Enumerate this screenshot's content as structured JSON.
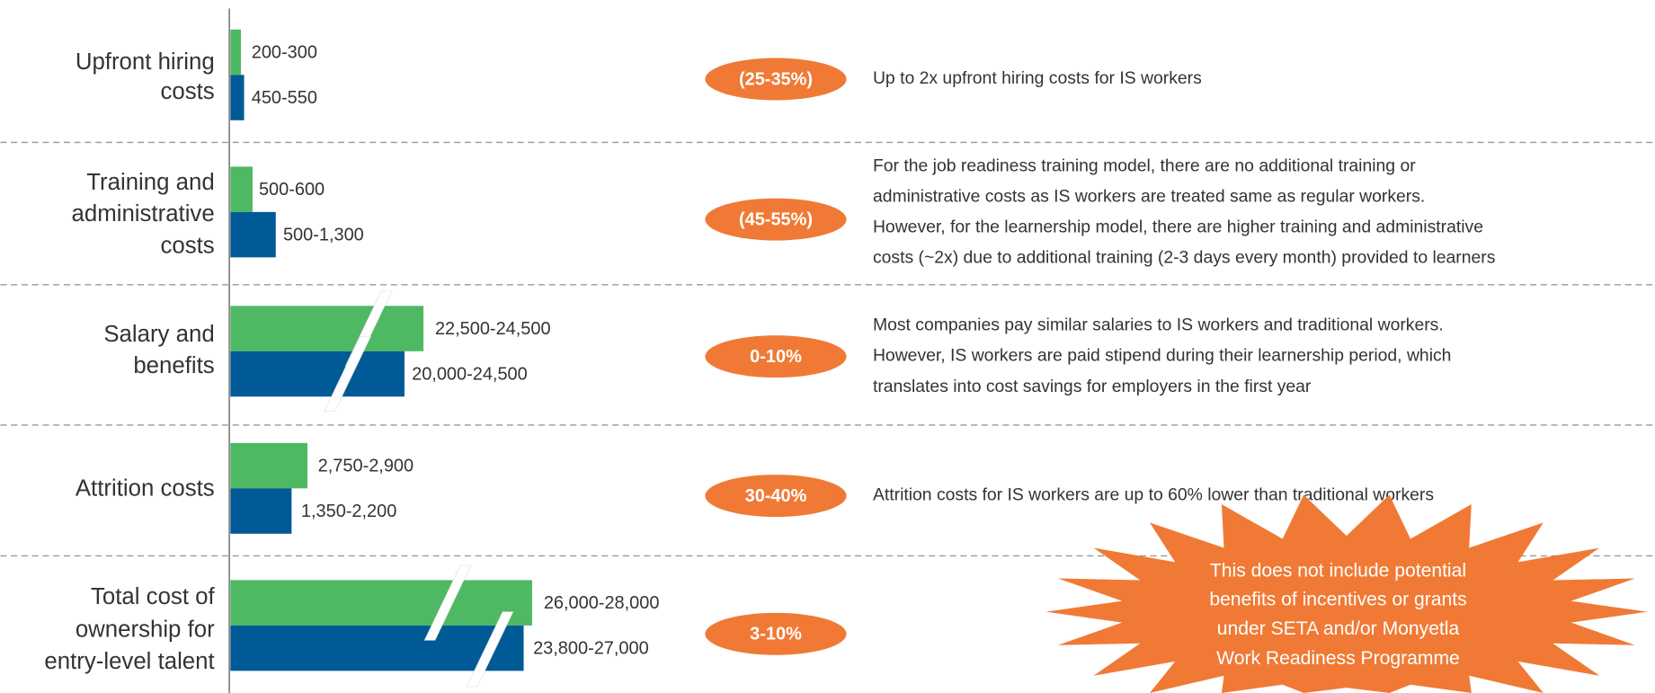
{
  "rows": [
    {
      "label": [
        "Upfront hiring",
        "costs"
      ],
      "green": "200-300",
      "blue": "450-550",
      "badge": "(25-35%)",
      "description": [
        "Up to 2x upfront hiring costs for IS workers"
      ]
    },
    {
      "label": [
        "Training and",
        "administrative",
        "costs"
      ],
      "green": "500-600",
      "blue": "500-1,300",
      "badge": "(45-55%)",
      "description": [
        "For the job readiness training model, there are no additional training or",
        "administrative costs as IS workers are treated same as regular workers.",
        "However, for the learnership model, there are higher training and administrative",
        "costs (~2x) due to additional training (2-3 days every month) provided to learners"
      ]
    },
    {
      "label": [
        "Salary and",
        "benefits"
      ],
      "green": "22,500-24,500",
      "blue": "20,000-24,500",
      "badge": "0-10%",
      "description": [
        "Most companies pay similar salaries to IS workers and traditional workers.",
        "However, IS workers are paid stipend during their learnership period, which",
        "translates into cost savings for employers in the first year"
      ]
    },
    {
      "label": [
        "Attrition costs"
      ],
      "green": "2,750-2,900",
      "blue": "1,350-2,200",
      "badge": "30-40%",
      "description": [
        "Attrition costs for IS workers are up to 60% lower than traditional workers"
      ]
    },
    {
      "label": [
        "Total cost of",
        "ownership for",
        "entry-level talent"
      ],
      "green": "26,000-28,000",
      "blue": "23,800-27,000",
      "badge": "3-10%",
      "description": []
    }
  ],
  "note": [
    "This does not include potential",
    "benefits of incentives or grants",
    "under SETA and/or Monyetla",
    "Work Readiness Programme"
  ]
}
